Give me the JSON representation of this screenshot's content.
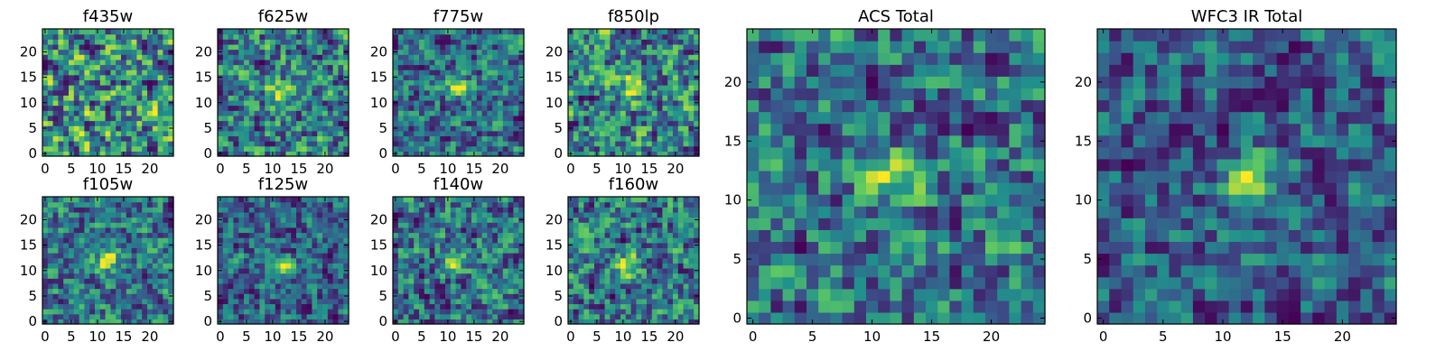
{
  "chart_data": [
    {
      "type": "heatmap",
      "title": "f435w",
      "xticks": [
        "0",
        "5",
        "10",
        "15",
        "20"
      ],
      "yticks": [
        "0",
        "5",
        "10",
        "15",
        "20"
      ],
      "xlim": [
        0,
        24
      ],
      "ylim": [
        0,
        24
      ],
      "grid": 25,
      "colormap": "viridis",
      "source_peak": null,
      "noise_seed": 11
    },
    {
      "type": "heatmap",
      "title": "f625w",
      "xticks": [
        "0",
        "5",
        "10",
        "15",
        "20"
      ],
      "yticks": [
        "0",
        "5",
        "10",
        "15",
        "20"
      ],
      "xlim": [
        0,
        24
      ],
      "ylim": [
        0,
        24
      ],
      "grid": 25,
      "colormap": "viridis",
      "source_peak": [
        12,
        12
      ],
      "noise_seed": 23
    },
    {
      "type": "heatmap",
      "title": "f775w",
      "xticks": [
        "0",
        "5",
        "10",
        "15",
        "20"
      ],
      "yticks": [
        "0",
        "5",
        "10",
        "15",
        "20"
      ],
      "xlim": [
        0,
        24
      ],
      "ylim": [
        0,
        24
      ],
      "grid": 25,
      "colormap": "viridis",
      "source_peak": [
        12,
        13
      ],
      "noise_seed": 37
    },
    {
      "type": "heatmap",
      "title": "f850lp",
      "xticks": [
        "0",
        "5",
        "10",
        "15",
        "20"
      ],
      "yticks": [
        "0",
        "5",
        "10",
        "15",
        "20"
      ],
      "xlim": [
        0,
        24
      ],
      "ylim": [
        0,
        24
      ],
      "grid": 25,
      "colormap": "viridis",
      "source_peak": [
        12,
        13
      ],
      "noise_seed": 41
    },
    {
      "type": "heatmap",
      "title": "f105w",
      "xticks": [
        "0",
        "5",
        "10",
        "15",
        "20"
      ],
      "yticks": [
        "0",
        "5",
        "10",
        "15",
        "20"
      ],
      "xlim": [
        0,
        24
      ],
      "ylim": [
        0,
        24
      ],
      "grid": 25,
      "colormap": "viridis",
      "source_peak": [
        12,
        12
      ],
      "noise_seed": 53
    },
    {
      "type": "heatmap",
      "title": "f125w",
      "xticks": [
        "0",
        "5",
        "10",
        "15",
        "20"
      ],
      "yticks": [
        "0",
        "5",
        "10",
        "15",
        "20"
      ],
      "xlim": [
        0,
        24
      ],
      "ylim": [
        0,
        24
      ],
      "grid": 25,
      "colormap": "viridis",
      "source_peak": [
        12,
        11
      ],
      "noise_seed": 67
    },
    {
      "type": "heatmap",
      "title": "f140w",
      "xticks": [
        "0",
        "5",
        "10",
        "15",
        "20"
      ],
      "yticks": [
        "0",
        "5",
        "10",
        "15",
        "20"
      ],
      "xlim": [
        0,
        24
      ],
      "ylim": [
        0,
        24
      ],
      "grid": 25,
      "colormap": "viridis",
      "source_peak": [
        12,
        12
      ],
      "noise_seed": 79
    },
    {
      "type": "heatmap",
      "title": "f160w",
      "xticks": [
        "0",
        "5",
        "10",
        "15",
        "20"
      ],
      "yticks": [
        "0",
        "5",
        "10",
        "15",
        "20"
      ],
      "xlim": [
        0,
        24
      ],
      "ylim": [
        0,
        24
      ],
      "grid": 25,
      "colormap": "viridis",
      "source_peak": [
        11,
        11
      ],
      "noise_seed": 83
    },
    {
      "type": "heatmap",
      "title": "ACS Total",
      "xticks": [
        "0",
        "5",
        "10",
        "15",
        "20"
      ],
      "yticks": [
        "0",
        "5",
        "10",
        "15",
        "20"
      ],
      "xlim": [
        0,
        24
      ],
      "ylim": [
        0,
        24
      ],
      "grid": 25,
      "colormap": "viridis",
      "source_peak": [
        12,
        12
      ],
      "noise_seed": 97
    },
    {
      "type": "heatmap",
      "title": "WFC3 IR Total",
      "xticks": [
        "0",
        "5",
        "10",
        "15",
        "20"
      ],
      "yticks": [
        "0",
        "5",
        "10",
        "15",
        "20"
      ],
      "xlim": [
        0,
        24
      ],
      "ylim": [
        0,
        24
      ],
      "grid": 25,
      "colormap": "viridis",
      "source_peak": [
        12,
        12
      ],
      "noise_seed": 101
    }
  ],
  "colors": {
    "viridis": [
      "#440154",
      "#3b528b",
      "#21918c",
      "#5ec962",
      "#fde725"
    ]
  }
}
